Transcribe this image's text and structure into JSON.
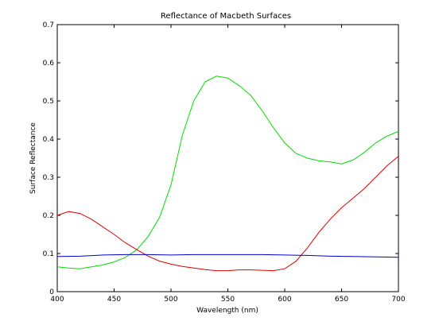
{
  "chart_data": {
    "type": "line",
    "title": "Reflectance of Macbeth Surfaces",
    "xlabel": "Wavelength (nm)",
    "ylabel": "Surface Reflectance",
    "xlim": [
      400,
      700
    ],
    "ylim": [
      0,
      0.7
    ],
    "xticks": [
      400,
      450,
      500,
      550,
      600,
      650,
      700
    ],
    "yticks": [
      0,
      0.1,
      0.2,
      0.3,
      0.4,
      0.5,
      0.6,
      0.7
    ],
    "xtick_labels": [
      "400",
      "450",
      "500",
      "550",
      "600",
      "650",
      "700"
    ],
    "ytick_labels": [
      "0",
      "0.1",
      "0.2",
      "0.3",
      "0.4",
      "0.5",
      "0.6",
      "0.7"
    ],
    "grid": false,
    "legend": false,
    "series": [
      {
        "color": "#00dd00",
        "x": [
          400,
          410,
          420,
          430,
          440,
          450,
          460,
          470,
          480,
          490,
          500,
          510,
          520,
          530,
          540,
          550,
          560,
          570,
          580,
          590,
          600,
          610,
          620,
          630,
          640,
          650,
          660,
          670,
          680,
          690,
          700
        ],
        "y": [
          0.065,
          0.062,
          0.06,
          0.065,
          0.07,
          0.078,
          0.09,
          0.11,
          0.145,
          0.195,
          0.28,
          0.41,
          0.5,
          0.55,
          0.565,
          0.56,
          0.54,
          0.515,
          0.475,
          0.43,
          0.39,
          0.362,
          0.35,
          0.343,
          0.34,
          0.335,
          0.345,
          0.365,
          0.39,
          0.408,
          0.42
        ]
      },
      {
        "color": "#dd0000",
        "x": [
          400,
          410,
          420,
          430,
          440,
          450,
          460,
          470,
          480,
          490,
          500,
          510,
          520,
          530,
          540,
          550,
          560,
          570,
          580,
          590,
          600,
          610,
          620,
          630,
          640,
          650,
          660,
          670,
          680,
          690,
          700
        ],
        "y": [
          0.2,
          0.21,
          0.205,
          0.19,
          0.17,
          0.15,
          0.128,
          0.11,
          0.093,
          0.08,
          0.072,
          0.066,
          0.062,
          0.058,
          0.055,
          0.055,
          0.057,
          0.057,
          0.056,
          0.055,
          0.06,
          0.08,
          0.115,
          0.155,
          0.19,
          0.22,
          0.245,
          0.27,
          0.3,
          0.33,
          0.355
        ]
      },
      {
        "color": "#0000cc",
        "x": [
          400,
          420,
          440,
          460,
          480,
          500,
          520,
          540,
          560,
          580,
          600,
          620,
          640,
          660,
          680,
          700
        ],
        "y": [
          0.092,
          0.093,
          0.096,
          0.097,
          0.097,
          0.096,
          0.097,
          0.097,
          0.097,
          0.097,
          0.096,
          0.095,
          0.093,
          0.092,
          0.091,
          0.09
        ]
      }
    ]
  }
}
